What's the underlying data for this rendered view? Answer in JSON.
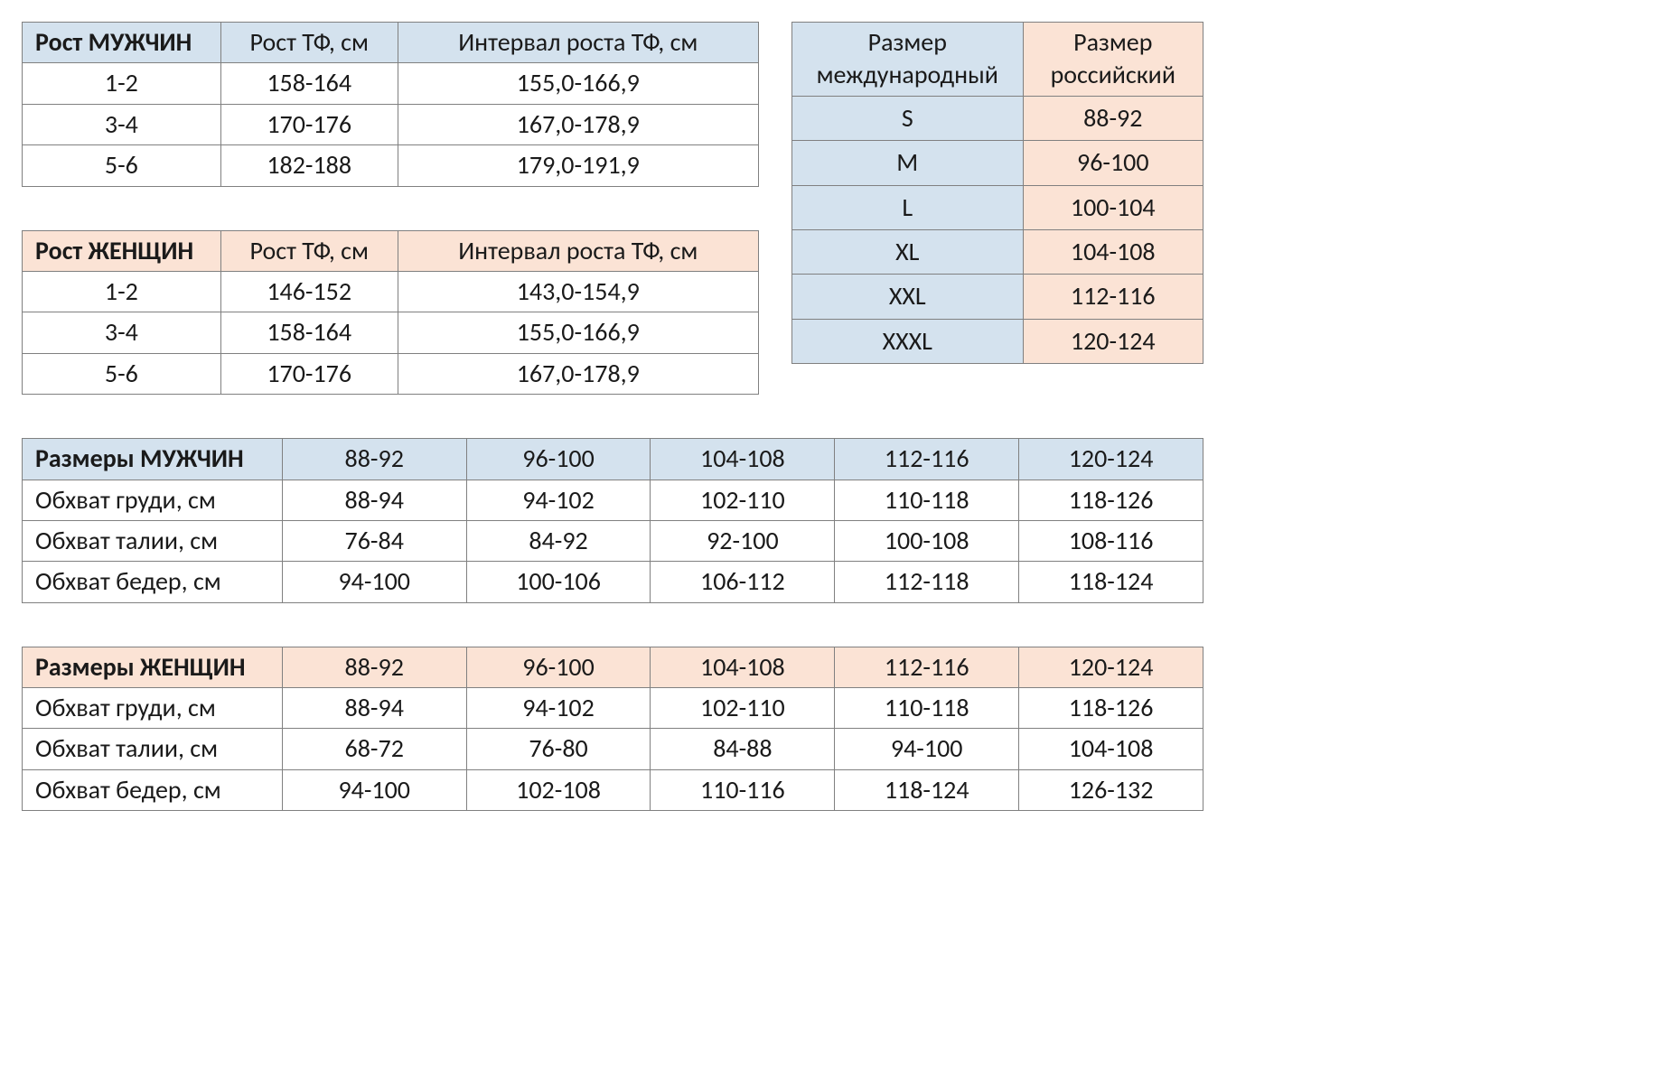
{
  "colors": {
    "header_blue": "#d4e2ee",
    "header_peach": "#fbe3d5",
    "border": "#808080",
    "text": "#1a1a1a",
    "background": "#ffffff"
  },
  "typography": {
    "font_family": "Calibri",
    "base_font_size_pt": 21
  },
  "height_men": {
    "columns": [
      "Рост МУЖЧИН",
      "Рост ТФ, см",
      "Интервал роста ТФ, см"
    ],
    "rows": [
      [
        "1-2",
        "158-164",
        "155,0-166,9"
      ],
      [
        "3-4",
        "170-176",
        "167,0-178,9"
      ],
      [
        "5-6",
        "182-188",
        "179,0-191,9"
      ]
    ]
  },
  "height_women": {
    "columns": [
      "Рост ЖЕНЩИН",
      "Рост ТФ, см",
      "Интервал роста ТФ, см"
    ],
    "rows": [
      [
        "1-2",
        "146-152",
        "143,0-154,9"
      ],
      [
        "3-4",
        "158-164",
        "155,0-166,9"
      ],
      [
        "5-6",
        "170-176",
        "167,0-178,9"
      ]
    ]
  },
  "size_map": {
    "columns": [
      "Размер международный",
      "Размер российский"
    ],
    "rows": [
      [
        "S",
        "88-92"
      ],
      [
        "M",
        "96-100"
      ],
      [
        "L",
        "100-104"
      ],
      [
        "XL",
        "104-108"
      ],
      [
        "XXL",
        "112-116"
      ],
      [
        "XXXL",
        "120-124"
      ]
    ]
  },
  "measure_men": {
    "header_label": "Размеры МУЖЧИН",
    "sizes": [
      "88-92",
      "96-100",
      "104-108",
      "112-116",
      "120-124"
    ],
    "rows": [
      {
        "label": "Обхват груди, см",
        "values": [
          "88-94",
          "94-102",
          "102-110",
          "110-118",
          "118-126"
        ]
      },
      {
        "label": "Обхват талии, см",
        "values": [
          "76-84",
          "84-92",
          "92-100",
          "100-108",
          "108-116"
        ]
      },
      {
        "label": "Обхват бедер, см",
        "values": [
          "94-100",
          "100-106",
          "106-112",
          "112-118",
          "118-124"
        ]
      }
    ]
  },
  "measure_women": {
    "header_label": "Размеры ЖЕНЩИН",
    "sizes": [
      "88-92",
      "96-100",
      "104-108",
      "112-116",
      "120-124"
    ],
    "rows": [
      {
        "label": "Обхват груди, см",
        "values": [
          "88-94",
          "94-102",
          "102-110",
          "110-118",
          "118-126"
        ]
      },
      {
        "label": "Обхват талии, см",
        "values": [
          "68-72",
          "76-80",
          "84-88",
          "94-100",
          "104-108"
        ]
      },
      {
        "label": "Обхват бедер, см",
        "values": [
          "94-100",
          "102-108",
          "110-116",
          "118-124",
          "126-132"
        ]
      }
    ]
  }
}
